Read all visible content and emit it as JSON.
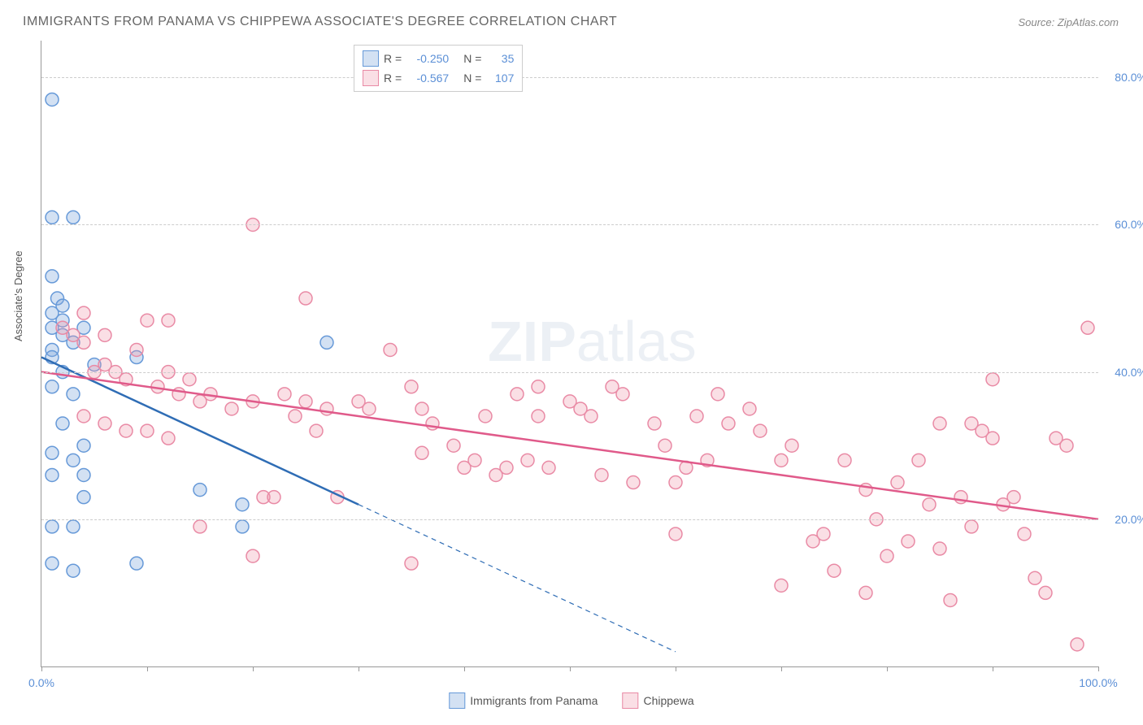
{
  "title": "IMMIGRANTS FROM PANAMA VS CHIPPEWA ASSOCIATE'S DEGREE CORRELATION CHART",
  "source_label": "Source: ZipAtlas.com",
  "watermark_zip": "ZIP",
  "watermark_atlas": "atlas",
  "y_axis_label": "Associate's Degree",
  "chart": {
    "type": "scatter",
    "background_color": "#ffffff",
    "grid_color": "#cccccc",
    "axis_color": "#999999",
    "tick_label_color": "#5b8fd6",
    "tick_fontsize": 14,
    "title_fontsize": 16,
    "title_color": "#666666",
    "xlim": [
      0,
      100
    ],
    "ylim": [
      0,
      85
    ],
    "x_ticks": [
      0,
      10,
      20,
      30,
      40,
      50,
      60,
      70,
      80,
      90,
      100
    ],
    "x_tick_labels": {
      "0": "0.0%",
      "100": "100.0%"
    },
    "y_gridlines": [
      20,
      40,
      60,
      80
    ],
    "y_tick_labels": {
      "20": "20.0%",
      "40": "40.0%",
      "60": "60.0%",
      "80": "80.0%"
    },
    "marker_radius": 8,
    "marker_stroke_width": 1.5,
    "trend_line_width": 2.5,
    "series": [
      {
        "name": "Immigrants from Panama",
        "legend_label": "Immigrants from Panama",
        "fill_color": "rgba(130,170,220,0.35)",
        "stroke_color": "#6699d8",
        "trend_color": "#2f6db5",
        "R_label": "R =",
        "R_value": "-0.250",
        "N_label": "N =",
        "N_value": "35",
        "trendline": {
          "x1": 0,
          "y1": 42,
          "x2_solid": 30,
          "y2_solid": 22,
          "x2_dash": 60,
          "y2_dash": 2
        },
        "points": [
          [
            1,
            77
          ],
          [
            1,
            61
          ],
          [
            3,
            61
          ],
          [
            1,
            53
          ],
          [
            1.5,
            50
          ],
          [
            2,
            49
          ],
          [
            1,
            48
          ],
          [
            2,
            47
          ],
          [
            1,
            46
          ],
          [
            2,
            45
          ],
          [
            3,
            44
          ],
          [
            1,
            43
          ],
          [
            1,
            42
          ],
          [
            5,
            41
          ],
          [
            2,
            40
          ],
          [
            1,
            38
          ],
          [
            3,
            37
          ],
          [
            1,
            29
          ],
          [
            3,
            28
          ],
          [
            1,
            26
          ],
          [
            4,
            26
          ],
          [
            15,
            24
          ],
          [
            4,
            23
          ],
          [
            1,
            19
          ],
          [
            3,
            19
          ],
          [
            19,
            22
          ],
          [
            9,
            14
          ],
          [
            1,
            14
          ],
          [
            3,
            13
          ],
          [
            19,
            19
          ],
          [
            9,
            42
          ],
          [
            27,
            44
          ],
          [
            4,
            46
          ],
          [
            4,
            30
          ],
          [
            2,
            33
          ]
        ]
      },
      {
        "name": "Chippewa",
        "legend_label": "Chippewa",
        "fill_color": "rgba(240,150,170,0.30)",
        "stroke_color": "#e98aa5",
        "trend_color": "#e05a8a",
        "R_label": "R =",
        "R_value": "-0.567",
        "N_label": "N =",
        "N_value": "107",
        "trendline": {
          "x1": 0,
          "y1": 40,
          "x2_solid": 100,
          "y2_solid": 20,
          "x2_dash": 100,
          "y2_dash": 20
        },
        "points": [
          [
            2,
            46
          ],
          [
            3,
            45
          ],
          [
            4,
            44
          ],
          [
            5,
            40
          ],
          [
            6,
            41
          ],
          [
            7,
            40
          ],
          [
            8,
            39
          ],
          [
            9,
            43
          ],
          [
            10,
            47
          ],
          [
            11,
            38
          ],
          [
            12,
            40
          ],
          [
            13,
            37
          ],
          [
            14,
            39
          ],
          [
            15,
            36
          ],
          [
            4,
            34
          ],
          [
            6,
            33
          ],
          [
            8,
            32
          ],
          [
            10,
            32
          ],
          [
            12,
            31
          ],
          [
            20,
            60
          ],
          [
            16,
            37
          ],
          [
            18,
            35
          ],
          [
            20,
            36
          ],
          [
            21,
            23
          ],
          [
            22,
            23
          ],
          [
            23,
            37
          ],
          [
            24,
            34
          ],
          [
            25,
            36
          ],
          [
            26,
            32
          ],
          [
            27,
            35
          ],
          [
            28,
            23
          ],
          [
            30,
            36
          ],
          [
            31,
            35
          ],
          [
            33,
            43
          ],
          [
            35,
            38
          ],
          [
            36,
            35
          ],
          [
            37,
            33
          ],
          [
            39,
            30
          ],
          [
            40,
            27
          ],
          [
            41,
            28
          ],
          [
            42,
            34
          ],
          [
            43,
            26
          ],
          [
            44,
            27
          ],
          [
            45,
            37
          ],
          [
            46,
            28
          ],
          [
            47,
            38
          ],
          [
            48,
            27
          ],
          [
            50,
            36
          ],
          [
            51,
            35
          ],
          [
            52,
            34
          ],
          [
            53,
            26
          ],
          [
            54,
            38
          ],
          [
            55,
            37
          ],
          [
            56,
            25
          ],
          [
            58,
            33
          ],
          [
            59,
            30
          ],
          [
            60,
            25
          ],
          [
            61,
            27
          ],
          [
            62,
            34
          ],
          [
            63,
            28
          ],
          [
            65,
            33
          ],
          [
            67,
            35
          ],
          [
            68,
            32
          ],
          [
            70,
            11
          ],
          [
            71,
            30
          ],
          [
            73,
            17
          ],
          [
            74,
            18
          ],
          [
            75,
            13
          ],
          [
            76,
            28
          ],
          [
            78,
            10
          ],
          [
            79,
            20
          ],
          [
            80,
            15
          ],
          [
            81,
            25
          ],
          [
            82,
            17
          ],
          [
            83,
            28
          ],
          [
            84,
            22
          ],
          [
            85,
            16
          ],
          [
            86,
            9
          ],
          [
            87,
            23
          ],
          [
            88,
            19
          ],
          [
            89,
            32
          ],
          [
            90,
            31
          ],
          [
            91,
            22
          ],
          [
            92,
            23
          ],
          [
            93,
            18
          ],
          [
            94,
            12
          ],
          [
            95,
            10
          ],
          [
            96,
            31
          ],
          [
            97,
            30
          ],
          [
            98,
            3
          ],
          [
            99,
            46
          ],
          [
            88,
            33
          ],
          [
            90,
            39
          ],
          [
            4,
            48
          ],
          [
            12,
            47
          ],
          [
            6,
            45
          ],
          [
            25,
            50
          ],
          [
            47,
            34
          ],
          [
            36,
            29
          ],
          [
            64,
            37
          ],
          [
            70,
            28
          ],
          [
            85,
            33
          ],
          [
            78,
            24
          ],
          [
            60,
            18
          ],
          [
            35,
            14
          ],
          [
            20,
            15
          ],
          [
            15,
            19
          ]
        ]
      }
    ]
  },
  "legend_bottom": [
    {
      "label": "Immigrants from Panama",
      "fill": "rgba(130,170,220,0.35)",
      "stroke": "#6699d8"
    },
    {
      "label": "Chippewa",
      "fill": "rgba(240,150,170,0.30)",
      "stroke": "#e98aa5"
    }
  ]
}
